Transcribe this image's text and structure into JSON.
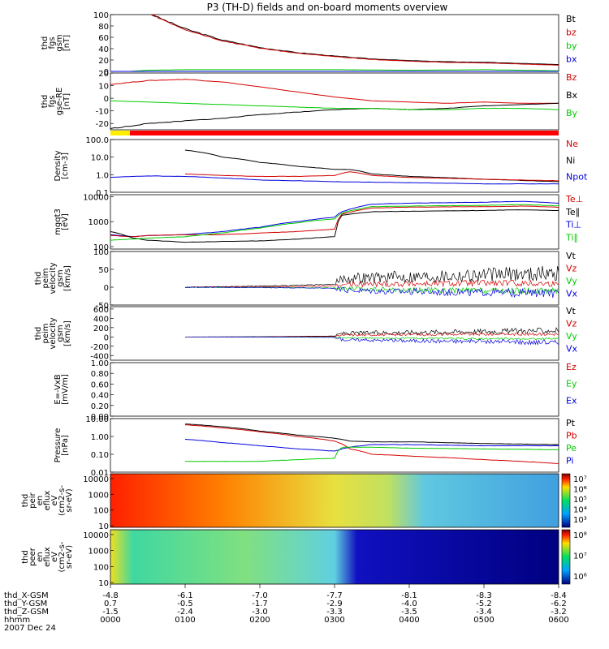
{
  "title": "P3 (TH-D) fields and on-board moments overview",
  "date_label": "2007 Dec 24",
  "colors": {
    "black": "#000000",
    "red": "#d40000",
    "green": "#00cc00",
    "blue": "#0000dd"
  },
  "chart_data": [
    {
      "type": "line",
      "id": "fgs_gsm",
      "ylabel_lines": [
        "thd",
        "fgs",
        "gsm",
        "[nT]"
      ],
      "ylim": [
        0,
        100
      ],
      "yticks": [
        0,
        20,
        40,
        60,
        80,
        100
      ],
      "legend": [
        {
          "label": "Bt",
          "color": "black"
        },
        {
          "label": "bz",
          "color": "red"
        },
        {
          "label": "by",
          "color": "green"
        },
        {
          "label": "bx",
          "color": "blue"
        }
      ],
      "series": [
        {
          "color": "black",
          "x": [
            0.55,
            1,
            1.5,
            2,
            2.5,
            3,
            3.5,
            4,
            4.5,
            5,
            5.5,
            6
          ],
          "y": [
            100,
            75,
            55,
            42,
            33,
            27,
            22,
            19,
            17,
            16,
            14,
            12
          ]
        },
        {
          "color": "red",
          "x": [
            0.55,
            1,
            1.5,
            2,
            2.5,
            3,
            3.5,
            4,
            4.5,
            5,
            5.5,
            6
          ],
          "y": [
            100,
            74,
            54,
            41,
            32,
            26,
            21,
            18,
            16,
            15,
            13,
            11
          ]
        },
        {
          "color": "green",
          "x": [
            0,
            0.5,
            1,
            2,
            3,
            4,
            5,
            6
          ],
          "y": [
            -2,
            2,
            3,
            3,
            3,
            2,
            3,
            1
          ]
        },
        {
          "color": "blue",
          "x": [
            0,
            0.5,
            1,
            2,
            3,
            4,
            5,
            6
          ],
          "y": [
            -6,
            -5,
            -5,
            -4,
            -3,
            -2,
            -1,
            0
          ]
        }
      ]
    },
    {
      "type": "line",
      "id": "fgs_gse",
      "ylabel_lines": [
        "thd",
        "fgs",
        "gse-RE",
        "[nT]"
      ],
      "ylim": [
        -25,
        20
      ],
      "yticks": [
        -20,
        -10,
        0,
        10,
        20
      ],
      "legend": [
        {
          "label": "Bz",
          "color": "red"
        },
        {
          "label": "Bx",
          "color": "black"
        },
        {
          "label": "By",
          "color": "green"
        }
      ],
      "series": [
        {
          "color": "red",
          "x": [
            0,
            0.5,
            1,
            1.5,
            2,
            2.5,
            3,
            3.5,
            4,
            4.5,
            5,
            5.5,
            6
          ],
          "y": [
            11,
            14,
            15,
            13,
            9,
            5,
            1,
            -2,
            -3,
            -4,
            -3,
            -4,
            -4
          ]
        },
        {
          "color": "black",
          "x": [
            0,
            0.5,
            1,
            1.5,
            2,
            2.5,
            3,
            3.5,
            4,
            4.5,
            5,
            5.5,
            6
          ],
          "y": [
            -24,
            -20,
            -18,
            -16,
            -13,
            -11,
            -9,
            -8,
            -9,
            -8,
            -6,
            -5,
            -4
          ]
        },
        {
          "color": "green",
          "x": [
            0,
            0.5,
            1,
            1.5,
            2,
            2.5,
            3,
            3.5,
            4,
            4.5,
            5,
            5.5,
            6
          ],
          "y": [
            -2,
            -3,
            -4,
            -5,
            -6,
            -7,
            -8,
            -8,
            -9,
            -9,
            -8,
            -8,
            -9
          ]
        }
      ]
    },
    {
      "type": "line",
      "id": "density",
      "scale": "log",
      "ylabel_lines": [
        "Density",
        "[cm-3]"
      ],
      "ylim": [
        0.1,
        100
      ],
      "yticks": [
        0.1,
        1.0,
        10.0,
        100.0
      ],
      "yticklabels": [
        "0.1",
        "1.0",
        "10.0",
        "100.0"
      ],
      "legend": [
        {
          "label": "Ne",
          "color": "red"
        },
        {
          "label": "Ni",
          "color": "black"
        },
        {
          "label": "Npot",
          "color": "blue"
        }
      ],
      "series": [
        {
          "color": "black",
          "x": [
            1,
            1.5,
            2,
            2.5,
            3,
            3.2,
            3.5,
            4,
            5,
            6
          ],
          "y": [
            25,
            10,
            5,
            3,
            2,
            2,
            1.1,
            0.8,
            0.55,
            0.4
          ]
        },
        {
          "color": "red",
          "x": [
            1,
            1.5,
            2,
            2.5,
            3,
            3.2,
            3.5,
            4,
            5,
            6
          ],
          "y": [
            1.1,
            0.9,
            0.8,
            0.8,
            0.9,
            1.5,
            0.9,
            0.7,
            0.55,
            0.45
          ]
        },
        {
          "color": "blue",
          "x": [
            0,
            0.5,
            1,
            2,
            3,
            4,
            5,
            6
          ],
          "y": [
            0.7,
            0.85,
            0.8,
            0.5,
            0.4,
            0.35,
            0.3,
            0.3
          ]
        }
      ]
    },
    {
      "type": "line",
      "id": "temperature",
      "scale": "log",
      "ylabel_lines": [
        "mgqt3",
        "[eV]"
      ],
      "ylim": [
        80,
        12000
      ],
      "yticks": [
        100,
        1000,
        10000
      ],
      "yticklabels": [
        "100",
        "1000",
        "10000"
      ],
      "legend": [
        {
          "label": "Te⊥",
          "color": "red"
        },
        {
          "label": "Te∥",
          "color": "black"
        },
        {
          "label": "Ti⊥",
          "color": "blue"
        },
        {
          "label": "Ti∥",
          "color": "green"
        }
      ],
      "series": [
        {
          "color": "blue",
          "x": [
            0,
            0.3,
            0.5,
            1,
            1.5,
            2,
            2.5,
            3,
            3.1,
            3.5,
            4,
            5,
            5.5,
            6
          ],
          "y": [
            300,
            250,
            280,
            300,
            400,
            600,
            1000,
            1500,
            2500,
            5000,
            5500,
            6000,
            6500,
            5500
          ]
        },
        {
          "color": "red",
          "x": [
            0,
            0.3,
            0.5,
            1,
            1.5,
            2,
            2.5,
            3,
            3.1,
            3.5,
            4,
            5,
            5.5,
            6
          ],
          "y": [
            280,
            250,
            280,
            300,
            300,
            350,
            400,
            500,
            2000,
            3500,
            3800,
            4000,
            4200,
            3800
          ]
        },
        {
          "color": "black",
          "x": [
            0,
            0.3,
            0.5,
            1,
            1.5,
            2,
            2.5,
            3,
            3.1,
            3.5,
            4,
            5,
            5.5,
            6
          ],
          "y": [
            400,
            220,
            180,
            150,
            160,
            170,
            200,
            250,
            1800,
            2500,
            2600,
            2800,
            3000,
            2800
          ]
        },
        {
          "color": "green",
          "x": [
            0,
            0.3,
            0.5,
            1,
            1.5,
            2,
            2.5,
            3,
            3.1,
            3.5,
            4,
            5,
            5.5,
            6
          ],
          "y": [
            180,
            200,
            220,
            250,
            350,
            550,
            900,
            1300,
            2200,
            4000,
            4200,
            4500,
            4800,
            4300
          ]
        }
      ]
    },
    {
      "type": "line",
      "id": "velocity_fast",
      "noisy": true,
      "ylabel_lines": [
        "thd",
        "peim",
        "velocity",
        "gsm",
        "[km/s]"
      ],
      "ylim": [
        -50,
        100
      ],
      "yticks": [
        -50,
        0,
        50,
        100
      ],
      "legend": [
        {
          "label": "Vt",
          "color": "black"
        },
        {
          "label": "Vz",
          "color": "red"
        },
        {
          "label": "Vy",
          "color": "green"
        },
        {
          "label": "Vx",
          "color": "blue"
        }
      ],
      "series": [
        {
          "color": "black",
          "x": [
            1,
            2,
            3,
            3.1,
            4,
            5,
            6
          ],
          "y": [
            0,
            3,
            8,
            25,
            30,
            35,
            40
          ]
        },
        {
          "color": "red",
          "x": [
            1,
            2,
            3,
            3.1,
            4,
            5,
            6
          ],
          "y": [
            0,
            1,
            3,
            8,
            10,
            12,
            10
          ]
        },
        {
          "color": "green",
          "x": [
            1,
            2,
            3,
            3.1,
            4,
            5,
            6
          ],
          "y": [
            0,
            -1,
            -2,
            -5,
            -8,
            -10,
            -10
          ]
        },
        {
          "color": "blue",
          "x": [
            1,
            2,
            3,
            3.1,
            4,
            5,
            6
          ],
          "y": [
            0,
            -1,
            -3,
            -8,
            -12,
            -15,
            -18
          ]
        }
      ]
    },
    {
      "type": "line",
      "id": "velocity_slow",
      "noisy": true,
      "ylabel_lines": [
        "thd",
        "peim",
        "velocity",
        "gsm",
        "[km/s]"
      ],
      "ylim": [
        -500,
        650
      ],
      "yticks": [
        -400,
        -200,
        0,
        200,
        400,
        600
      ],
      "legend": [
        {
          "label": "Vt",
          "color": "black"
        },
        {
          "label": "Vz",
          "color": "red"
        },
        {
          "label": "Vy",
          "color": "green"
        },
        {
          "label": "Vx",
          "color": "blue"
        }
      ],
      "series": [
        {
          "color": "black",
          "x": [
            1,
            2,
            3,
            3.1,
            4,
            5,
            6
          ],
          "y": [
            0,
            5,
            20,
            80,
            100,
            120,
            140
          ]
        },
        {
          "color": "red",
          "x": [
            1,
            2,
            3,
            3.1,
            4,
            5,
            6
          ],
          "y": [
            0,
            2,
            10,
            40,
            50,
            60,
            60
          ]
        },
        {
          "color": "green",
          "x": [
            1,
            2,
            3,
            3.1,
            4,
            5,
            6
          ],
          "y": [
            0,
            -2,
            -5,
            -20,
            -30,
            -40,
            -40
          ]
        },
        {
          "color": "blue",
          "x": [
            1,
            2,
            3,
            3.1,
            4,
            5,
            6
          ],
          "y": [
            0,
            -3,
            -10,
            -60,
            -80,
            -100,
            -120
          ]
        }
      ]
    },
    {
      "type": "line",
      "id": "efield",
      "ylabel_lines": [
        "E=-VxB",
        "[mV/m]"
      ],
      "ylim": [
        0,
        1
      ],
      "yticks": [
        0,
        0.2,
        0.4,
        0.6,
        0.8,
        1.0
      ],
      "yticklabels": [
        "0.00",
        "0.20",
        "0.40",
        "0.60",
        "0.80",
        "1.00"
      ],
      "legend": [
        {
          "label": "Ez",
          "color": "red"
        },
        {
          "label": "Ey",
          "color": "green"
        },
        {
          "label": "Ex",
          "color": "blue"
        }
      ],
      "series": []
    },
    {
      "type": "line",
      "id": "pressure",
      "scale": "log",
      "ylabel_lines": [
        "Pressure",
        "[nPa]"
      ],
      "ylim": [
        0.01,
        10
      ],
      "yticks": [
        0.01,
        0.1,
        1,
        10
      ],
      "yticklabels": [
        "0.01",
        "0.10",
        "1.00",
        "10.00"
      ],
      "legend": [
        {
          "label": "Pt",
          "color": "black"
        },
        {
          "label": "Pb",
          "color": "red"
        },
        {
          "label": "Pe",
          "color": "green"
        },
        {
          "label": "Pi",
          "color": "blue"
        }
      ],
      "series": [
        {
          "color": "black",
          "x": [
            1,
            1.5,
            2,
            2.5,
            3,
            3.2,
            3.5,
            4,
            5,
            6
          ],
          "y": [
            5,
            3.5,
            2,
            1.2,
            0.8,
            0.55,
            0.5,
            0.5,
            0.4,
            0.35
          ]
        },
        {
          "color": "red",
          "x": [
            1,
            1.5,
            2,
            2.5,
            3,
            3.2,
            3.5,
            4,
            5,
            6
          ],
          "y": [
            4.5,
            3,
            1.8,
            1.0,
            0.55,
            0.2,
            0.1,
            0.08,
            0.05,
            0.03
          ]
        },
        {
          "color": "blue",
          "x": [
            1,
            1.5,
            2,
            2.5,
            3,
            3.2,
            3.5,
            4,
            5,
            6
          ],
          "y": [
            0.7,
            0.45,
            0.3,
            0.2,
            0.15,
            0.25,
            0.35,
            0.35,
            0.3,
            0.3
          ]
        },
        {
          "color": "green",
          "x": [
            1,
            1.5,
            2,
            2.5,
            3,
            3.1,
            3.5,
            4,
            5,
            6
          ],
          "y": [
            0.04,
            0.04,
            0.04,
            0.05,
            0.06,
            0.25,
            0.25,
            0.22,
            0.2,
            0.18
          ]
        }
      ]
    },
    {
      "type": "heatmap",
      "id": "ion_spectrogram",
      "scale": "log",
      "ylabel_lines": [
        "thd",
        "peir",
        "en",
        "eflux",
        "eV",
        "(cm2-s-",
        "sr-eV)"
      ],
      "ylim": [
        8,
        20000
      ],
      "yticks": [
        10,
        100,
        1000,
        10000
      ],
      "yticklabels": [
        "10",
        "100",
        "1000",
        "10000"
      ],
      "colorbar": {
        "ticks": [
          "10⁷",
          "10⁶",
          "10⁵",
          "10⁴",
          "10³"
        ]
      }
    },
    {
      "type": "heatmap",
      "id": "electron_spectrogram",
      "scale": "log",
      "ylabel_lines": [
        "thd",
        "peer",
        "en",
        "eflux",
        "eV",
        "(cm2-s-",
        "sr-eV)"
      ],
      "ylim": [
        8,
        20000
      ],
      "yticks": [
        10,
        100,
        1000,
        10000
      ],
      "yticklabels": [
        "10",
        "100",
        "1000",
        "10000"
      ],
      "colorbar": {
        "ticks": [
          "10⁸",
          "10⁷",
          "10⁶"
        ]
      }
    }
  ],
  "xaxis": {
    "row_labels": [
      "thd_X-GSM",
      "thd_Y-GSM",
      "thd_Z-GSM",
      "hhmm"
    ],
    "columns": [
      [
        "-4.8",
        "0.7",
        "-1.5",
        "0000"
      ],
      [
        "-6.1",
        "-0.5",
        "-2.4",
        "0100"
      ],
      [
        "-7.0",
        "-1.7",
        "-3.0",
        "0200"
      ],
      [
        "-7.7",
        "-2.9",
        "-3.3",
        "0300"
      ],
      [
        "-8.1",
        "-4.0",
        "-3.5",
        "0400"
      ],
      [
        "-8.3",
        "-5.2",
        "-3.4",
        "0500"
      ],
      [
        "-8.4",
        "-6.2",
        "-3.2",
        "0600"
      ]
    ]
  }
}
